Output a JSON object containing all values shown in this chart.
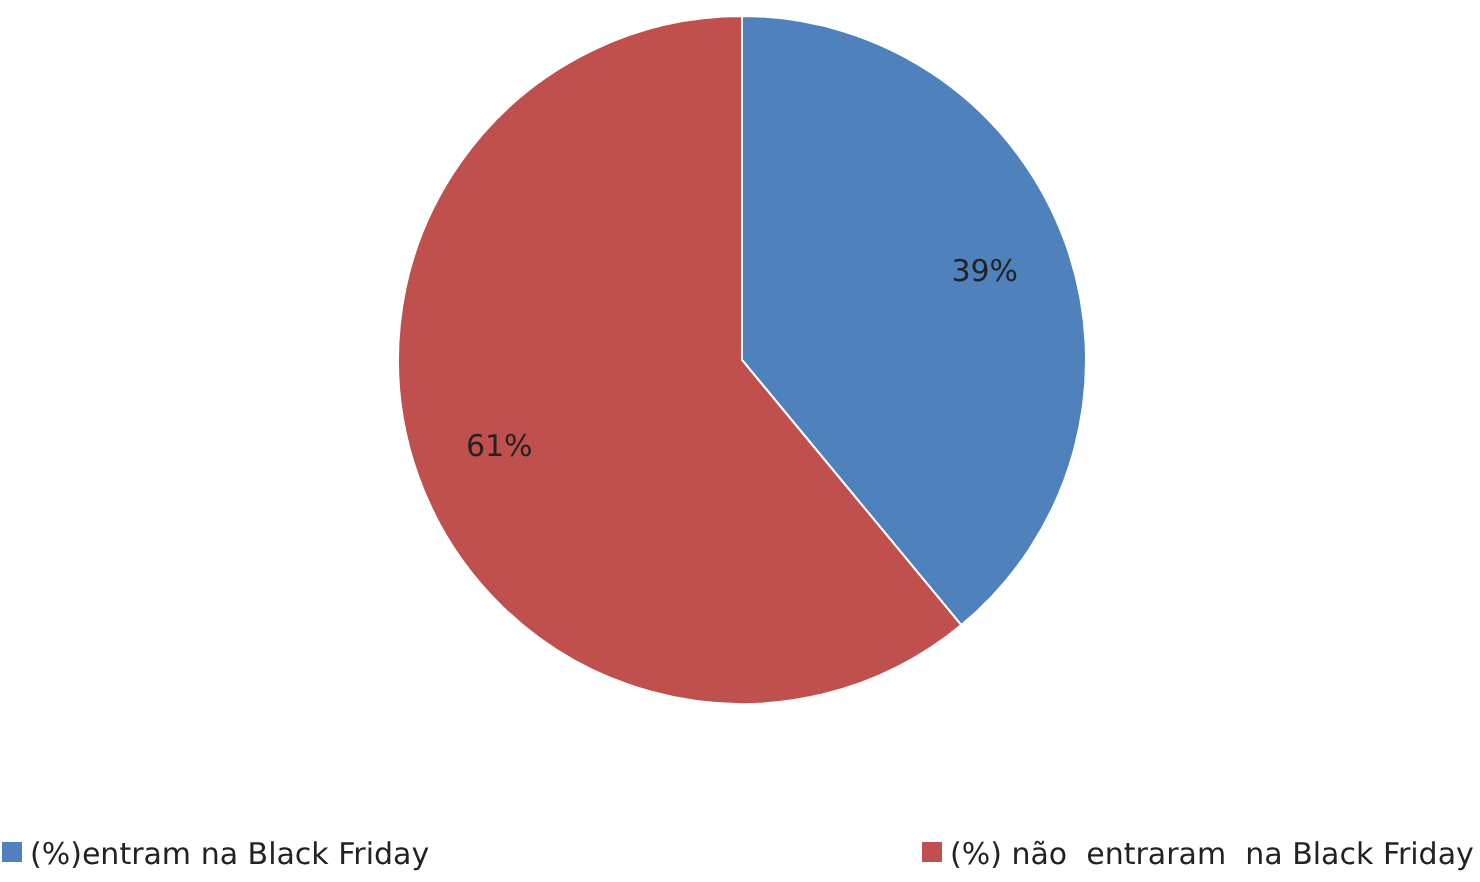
{
  "chart_data": {
    "type": "pie",
    "categories": [
      "(%)entram na Black Friday",
      "(%) não  entraram  na Black Friday"
    ],
    "values": [
      39,
      61
    ],
    "colors": [
      "#4f81bd",
      "#c0504d"
    ],
    "value_labels": [
      "39%",
      "61%"
    ],
    "legend": "bottom"
  }
}
